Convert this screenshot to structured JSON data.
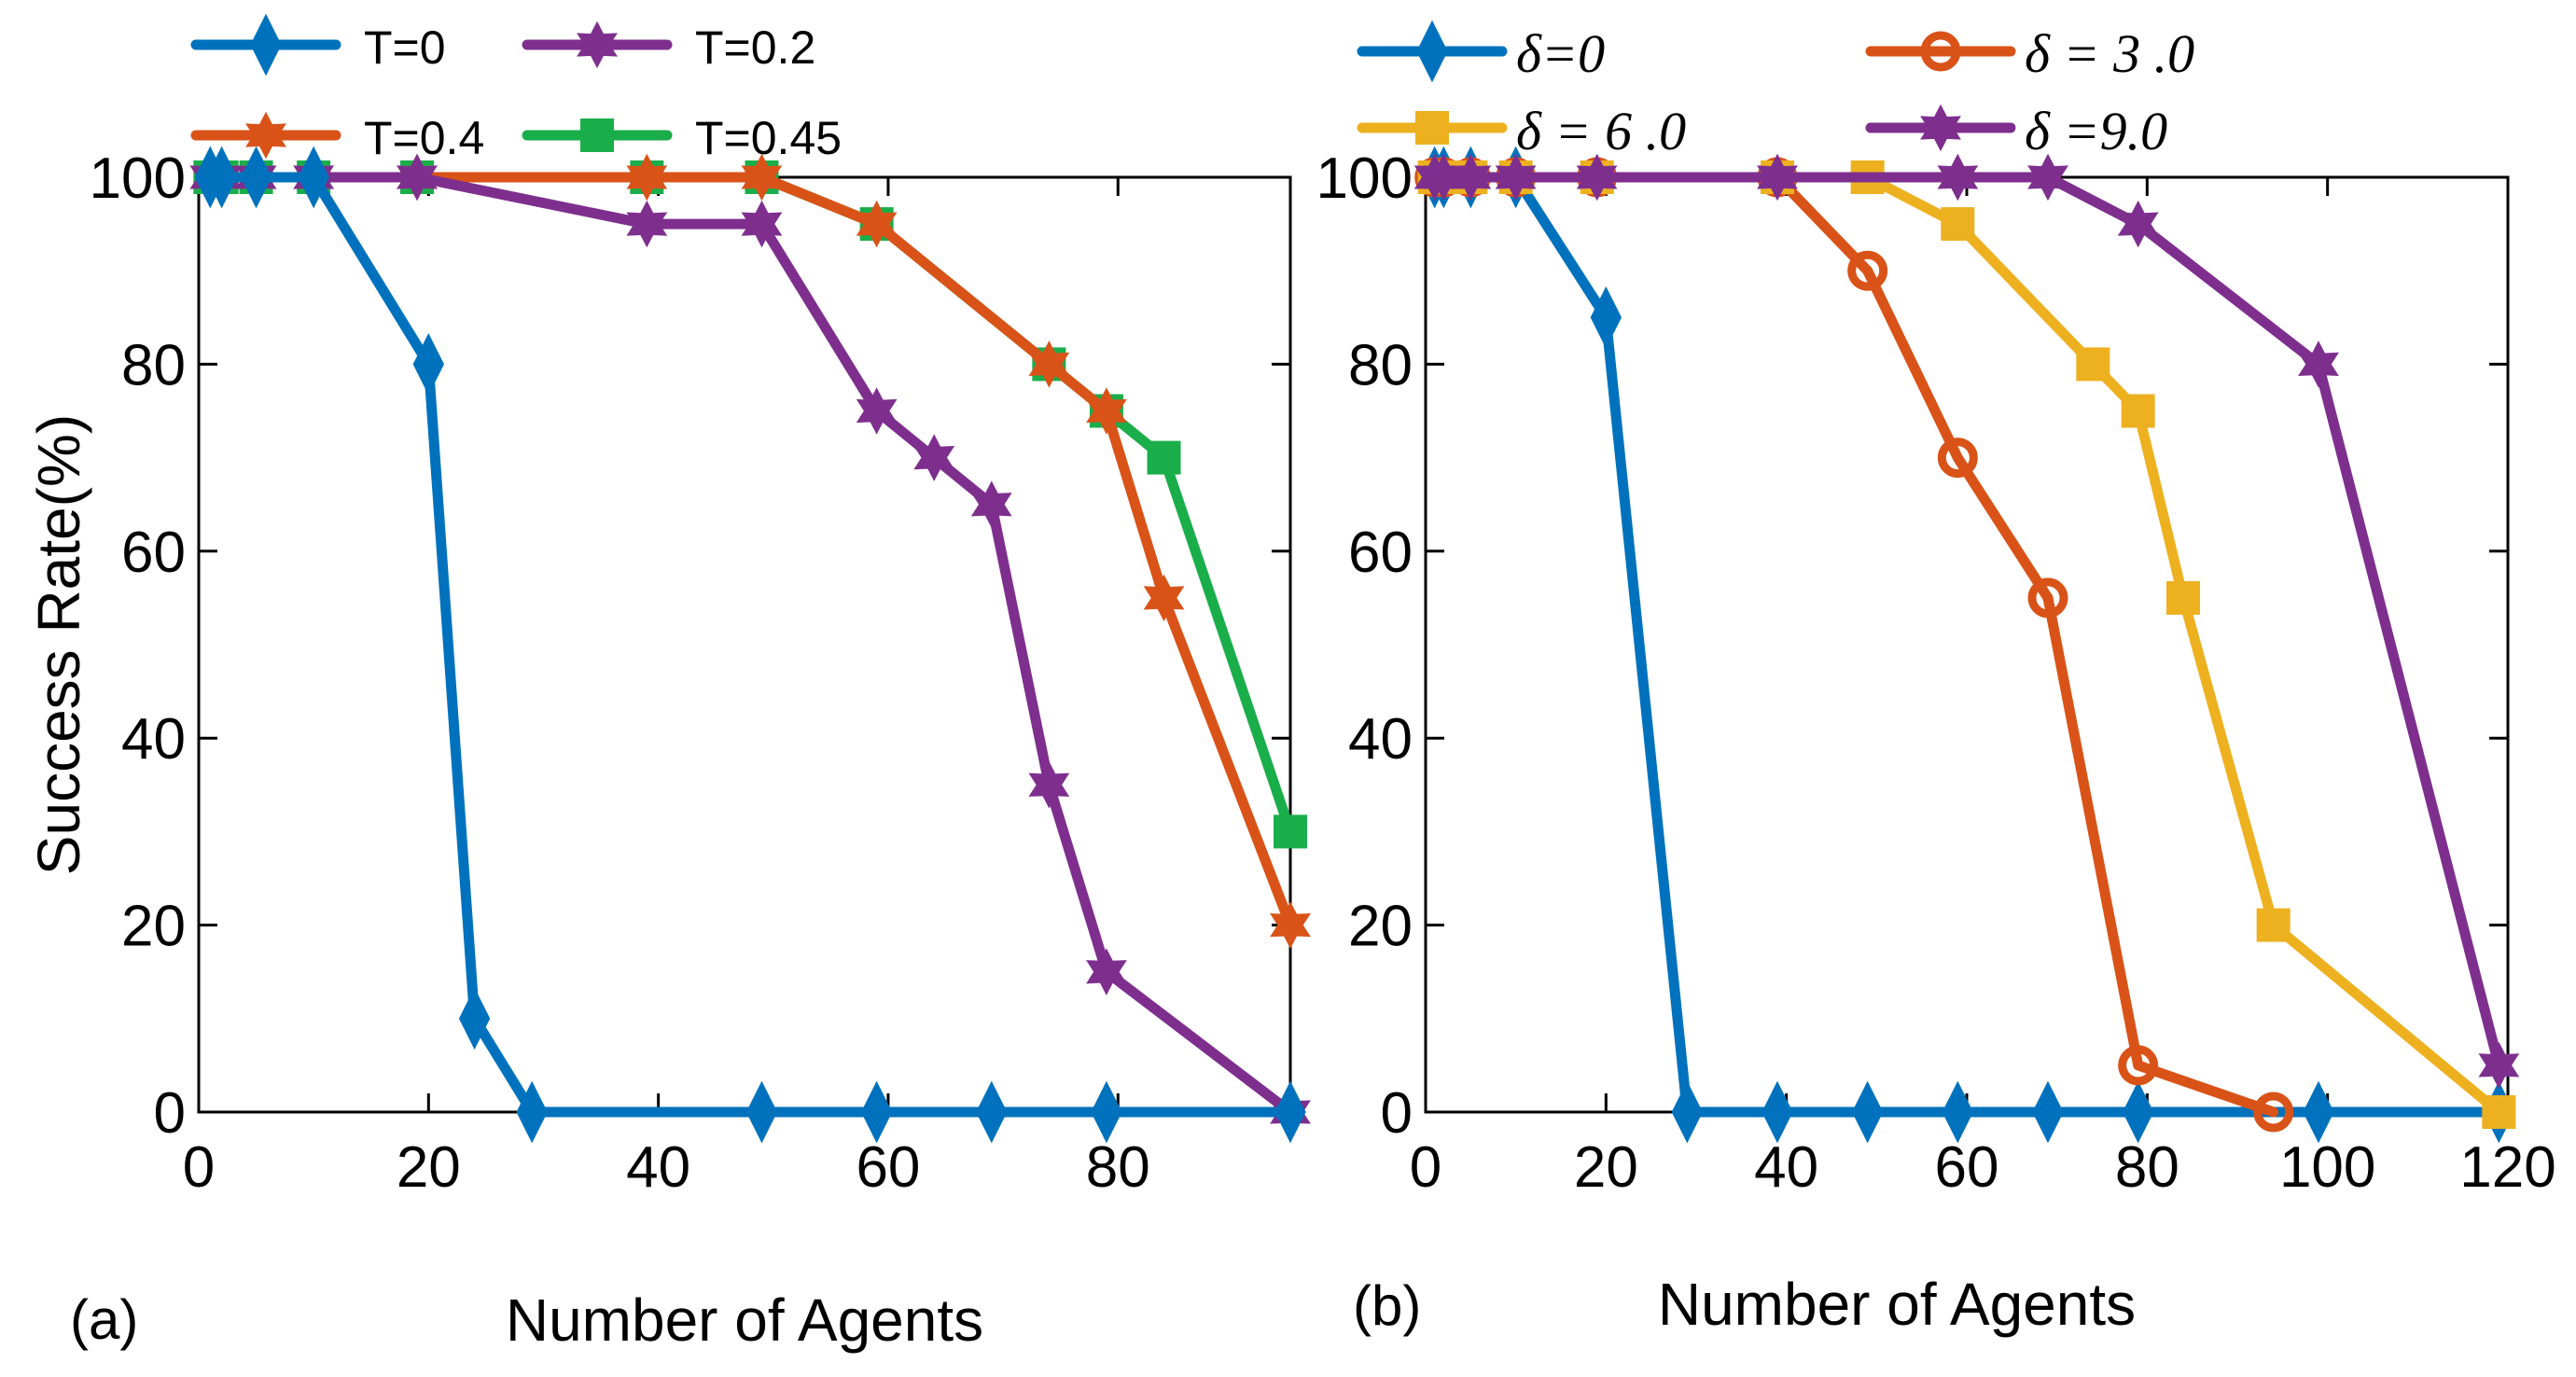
{
  "chart_data": [
    {
      "panel_label": "(a)",
      "type": "line",
      "xlabel": "Number of Agents",
      "ylabel": "Success Rate(%)",
      "xlim": [
        0,
        95
      ],
      "ylim": [
        0,
        100
      ],
      "xticks": [
        0,
        20,
        40,
        60,
        80
      ],
      "yticks": [
        0,
        20,
        40,
        60,
        80,
        100
      ],
      "legend_position": "top",
      "grid": false,
      "series": [
        {
          "name": "T=0",
          "color": "#0072BD",
          "marker": "diamond",
          "x": [
            1,
            2,
            5,
            10,
            20,
            24,
            29,
            49,
            59,
            69,
            79,
            95
          ],
          "y": [
            100,
            100,
            100,
            100,
            80,
            10,
            0,
            0,
            0,
            0,
            0,
            0
          ]
        },
        {
          "name": "T=0.2",
          "color": "#7E2F8E",
          "marker": "star",
          "x": [
            1,
            2,
            5,
            10,
            19,
            39,
            49,
            59,
            64,
            69,
            74,
            79,
            95
          ],
          "y": [
            100,
            100,
            100,
            100,
            100,
            95,
            95,
            75,
            70,
            65,
            35,
            15,
            0
          ]
        },
        {
          "name": "T=0.4",
          "color": "#D95319",
          "marker": "star",
          "x": [
            1,
            2,
            5,
            10,
            19,
            39,
            49,
            59,
            74,
            79,
            84,
            95
          ],
          "y": [
            100,
            100,
            100,
            100,
            100,
            100,
            100,
            95,
            80,
            75,
            55,
            20
          ]
        },
        {
          "name": "T=0.45",
          "color": "#1AAE4A",
          "marker": "square",
          "x": [
            1,
            2,
            5,
            10,
            19,
            39,
            49,
            59,
            74,
            79,
            84,
            95
          ],
          "y": [
            100,
            100,
            100,
            100,
            100,
            100,
            100,
            95,
            80,
            75,
            70,
            30
          ]
        }
      ]
    },
    {
      "panel_label": "(b)",
      "type": "line",
      "xlabel": "Number of Agents",
      "ylabel": "",
      "xlim": [
        0,
        120
      ],
      "ylim": [
        0,
        100
      ],
      "xticks": [
        0,
        20,
        40,
        60,
        80,
        100,
        120
      ],
      "yticks": [
        0,
        20,
        40,
        60,
        80,
        100
      ],
      "legend_position": "top",
      "grid": false,
      "series": [
        {
          "name": "δ=0",
          "color": "#0072BD",
          "marker": "diamond",
          "x": [
            1,
            2,
            5,
            10,
            20,
            29,
            39,
            49,
            59,
            69,
            79,
            99,
            119
          ],
          "y": [
            100,
            100,
            100,
            100,
            85,
            0,
            0,
            0,
            0,
            0,
            0,
            0,
            0
          ]
        },
        {
          "name": "δ = 3 .0",
          "color": "#D95319",
          "marker": "circle",
          "x": [
            1,
            2,
            5,
            10,
            19,
            39,
            49,
            59,
            69,
            79,
            94
          ],
          "y": [
            100,
            100,
            100,
            100,
            100,
            100,
            90,
            70,
            55,
            5,
            0
          ]
        },
        {
          "name": "δ = 6 .0",
          "color": "#EDB120",
          "marker": "square",
          "x": [
            1,
            2,
            5,
            10,
            19,
            39,
            49,
            59,
            74,
            79,
            84,
            94,
            119
          ],
          "y": [
            100,
            100,
            100,
            100,
            100,
            100,
            100,
            95,
            80,
            75,
            55,
            20,
            0
          ]
        },
        {
          "name": "δ =9.0",
          "color": "#7E2F8E",
          "marker": "star",
          "x": [
            1,
            2,
            5,
            10,
            19,
            39,
            59,
            69,
            79,
            99,
            119
          ],
          "y": [
            100,
            100,
            100,
            100,
            100,
            100,
            100,
            100,
            95,
            80,
            5
          ]
        }
      ]
    }
  ]
}
